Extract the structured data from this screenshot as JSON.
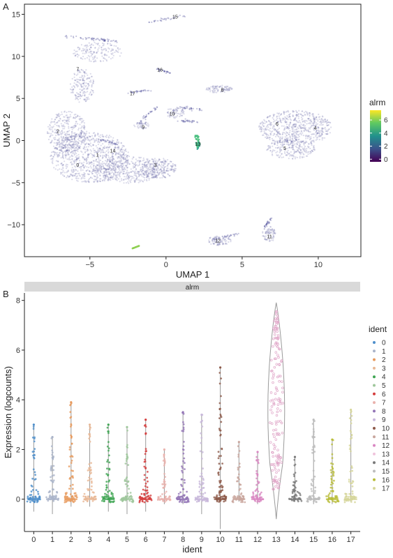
{
  "panels": {
    "a_letter": "A",
    "b_letter": "B"
  },
  "chart_data": [
    {
      "type": "scatter",
      "title": "",
      "xlabel": "UMAP 1",
      "ylabel": "UMAP 2",
      "xlim": [
        -9.3,
        12.8
      ],
      "ylim": [
        -13.8,
        16.2
      ],
      "xticks": [
        -5,
        0,
        5,
        10
      ],
      "yticks": [
        -10,
        -5,
        0,
        5,
        10,
        15
      ],
      "xtick_labels": [
        "−5",
        "0",
        "5",
        "10"
      ],
      "ytick_labels": [
        "−10",
        "−5",
        "0",
        "5",
        "10",
        "15"
      ],
      "grid": false,
      "legend": {
        "title": "alrm",
        "position": "right",
        "ticks": [
          0,
          2,
          4,
          6
        ],
        "tick_labels": [
          "0",
          "2",
          "4",
          "6"
        ],
        "range": [
          -0.4,
          7.5
        ],
        "colors": [
          "#440154",
          "#3b528b",
          "#21918c",
          "#5ec962",
          "#fde725"
        ]
      },
      "point_color": "#5a5aa0",
      "clusters": [
        {
          "label": "0",
          "x": -5.8,
          "y": -2.9
        },
        {
          "label": "1",
          "x": -4.5,
          "y": -1.7
        },
        {
          "label": "2",
          "x": -7.1,
          "y": 1.1
        },
        {
          "label": "3",
          "x": -0.7,
          "y": -2.9
        },
        {
          "label": "4",
          "x": 9.8,
          "y": 1.5
        },
        {
          "label": "5",
          "x": 7.8,
          "y": -0.9
        },
        {
          "label": "6",
          "x": 7.3,
          "y": 2.0
        },
        {
          "label": "7",
          "x": -5.8,
          "y": 8.5
        },
        {
          "label": "8",
          "x": 3.7,
          "y": 6.0
        },
        {
          "label": "9",
          "x": -1.5,
          "y": 1.6
        },
        {
          "label": "10",
          "x": 0.4,
          "y": 3.2
        },
        {
          "label": "11",
          "x": 6.8,
          "y": -11.4
        },
        {
          "label": "12",
          "x": 3.4,
          "y": -11.9
        },
        {
          "label": "13",
          "x": 2.1,
          "y": -0.4
        },
        {
          "label": "14",
          "x": -3.5,
          "y": -1.2
        },
        {
          "label": "15",
          "x": 0.6,
          "y": 14.7
        },
        {
          "label": "16",
          "x": -0.4,
          "y": 8.4
        },
        {
          "label": "17",
          "x": -2.2,
          "y": 5.6
        }
      ],
      "highlight": [
        {
          "cluster": "13",
          "value": 5.5
        },
        {
          "cluster": "extra",
          "value": 5.0,
          "x": -2.0,
          "y": -12.7
        }
      ]
    },
    {
      "type": "violin",
      "title": "",
      "strip_label": "alrm",
      "xlabel": "ident",
      "ylabel": "Expression (logcounts)",
      "ylim": [
        -1.3,
        8.3
      ],
      "yticks": [
        0,
        2,
        4,
        6,
        8
      ],
      "categories": [
        "0",
        "1",
        "2",
        "3",
        "4",
        "5",
        "6",
        "7",
        "8",
        "9",
        "10",
        "11",
        "12",
        "13",
        "14",
        "15",
        "16",
        "17"
      ],
      "max_values": [
        3.0,
        2.5,
        3.9,
        3.0,
        3.0,
        2.9,
        3.2,
        2.0,
        3.5,
        3.4,
        5.3,
        2.3,
        1.9,
        7.9,
        1.7,
        3.2,
        2.4,
        3.6
      ],
      "min_values": [
        -0.5,
        -0.6,
        -0.3,
        -0.3,
        -0.5,
        -0.6,
        -0.5,
        -0.2,
        -0.2,
        -0.6,
        -1.2,
        -0.1,
        -0.2,
        -0.8,
        -0.1,
        -0.2,
        -0.2,
        -0.1
      ],
      "colors": [
        "#4e8fcb",
        "#aab4c9",
        "#e79a5c",
        "#e8b896",
        "#3fa553",
        "#9fc79c",
        "#d43d3d",
        "#eab2ad",
        "#9375b6",
        "#c8b8db",
        "#8d5a4a",
        "#c9a69e",
        "#d987c2",
        "#f0c4dc",
        "#7a7a7a",
        "#bdbdbd",
        "#b9bd3a",
        "#d6d69a"
      ],
      "legend": {
        "title": "ident",
        "position": "right",
        "labels": [
          "0",
          "1",
          "2",
          "3",
          "4",
          "5",
          "6",
          "7",
          "8",
          "9",
          "10",
          "11",
          "12",
          "13",
          "14",
          "15",
          "16",
          "17"
        ]
      }
    }
  ]
}
